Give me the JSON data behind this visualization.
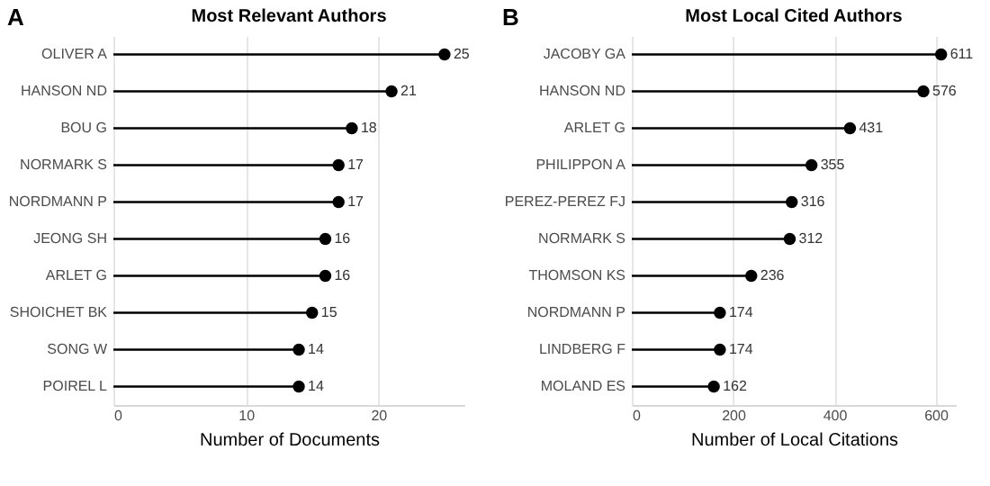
{
  "chart_data": [
    {
      "type": "lollipop",
      "title": "Most Relevant Authors",
      "xlabel": "Number of Documents",
      "annotations": [
        "A"
      ],
      "orientation": "horizontal",
      "categories": [
        "OLIVER A",
        "HANSON ND",
        "BOU G",
        "NORMARK S",
        "NORDMANN P",
        "JEONG SH",
        "ARLET G",
        "SHOICHET BK",
        "SONG W",
        "POIREL L"
      ],
      "values": [
        25,
        21,
        18,
        17,
        17,
        16,
        16,
        15,
        14,
        14
      ],
      "color": "#000000",
      "xlim": [
        0,
        26.5
      ],
      "xticks": [
        0,
        10,
        20
      ],
      "grid": "x",
      "data_labels": true,
      "marker": "circle",
      "line_style": "solid"
    },
    {
      "type": "lollipop",
      "title": "Most Local Cited Authors",
      "xlabel": "Number of Local Citations",
      "annotations": [
        "B"
      ],
      "orientation": "horizontal",
      "categories": [
        "JACOBY GA",
        "HANSON ND",
        "ARLET G",
        "PHILIPPON A",
        "PEREZ-PEREZ FJ",
        "NORMARK S",
        "THOMSON KS",
        "NORDMANN P",
        "LINDBERG F",
        "MOLAND ES"
      ],
      "values": [
        611,
        576,
        431,
        355,
        316,
        312,
        236,
        174,
        174,
        162
      ],
      "color": "#000000",
      "xlim": [
        0,
        640
      ],
      "xticks": [
        0,
        200,
        400,
        600
      ],
      "grid": "x",
      "data_labels": true,
      "marker": "circle",
      "line_style": "solid"
    }
  ]
}
